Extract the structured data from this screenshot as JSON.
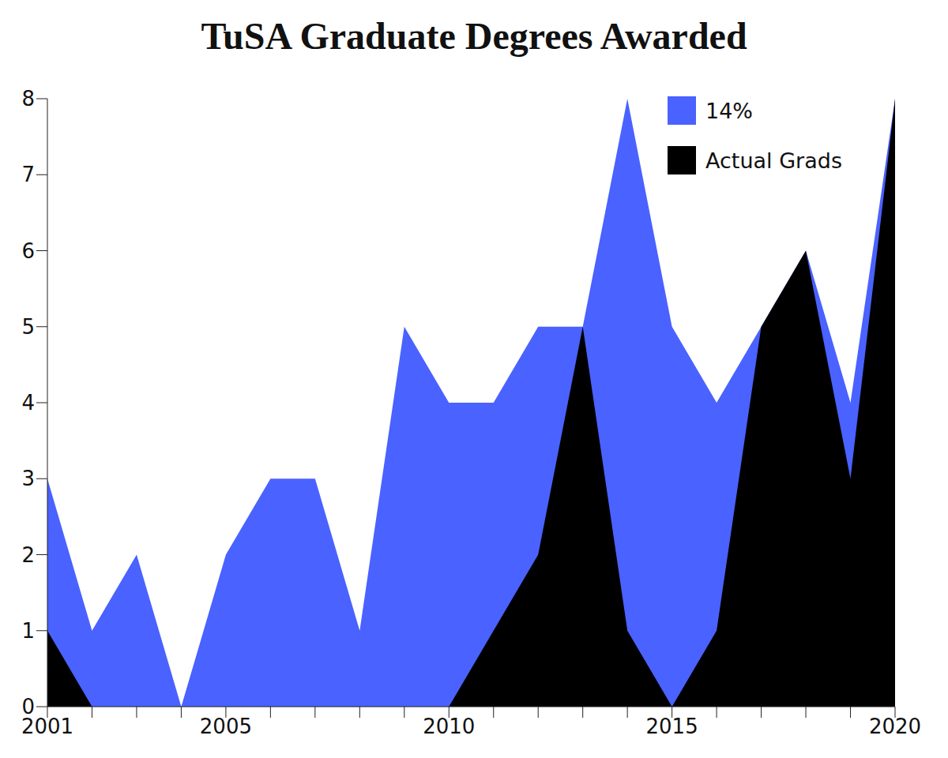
{
  "chart_data": {
    "type": "area",
    "title": "TuSA Graduate Degrees Awarded",
    "x": [
      2001,
      2002,
      2003,
      2004,
      2005,
      2006,
      2007,
      2008,
      2009,
      2010,
      2011,
      2012,
      2013,
      2014,
      2015,
      2016,
      2017,
      2018,
      2019,
      2020
    ],
    "series": [
      {
        "name": "14%",
        "color": "#4a62ff",
        "values": [
          3,
          1,
          2,
          0,
          2,
          3,
          3,
          1,
          5,
          4,
          4,
          5,
          5,
          8,
          5,
          4,
          5,
          6,
          4,
          8
        ]
      },
      {
        "name": "Actual Grads",
        "color": "#000000",
        "values": [
          1,
          0,
          0,
          0,
          0,
          0,
          0,
          0,
          0,
          0,
          1,
          2,
          5,
          1,
          0,
          1,
          5,
          6,
          3,
          8
        ]
      }
    ],
    "xlim": [
      2001,
      2020
    ],
    "ylim": [
      0,
      8
    ],
    "xticks": [
      2001,
      2005,
      2010,
      2015,
      2020
    ],
    "yticks": [
      0,
      1,
      2,
      3,
      4,
      5,
      6,
      7,
      8
    ],
    "legend": "top-right",
    "grid": false
  }
}
